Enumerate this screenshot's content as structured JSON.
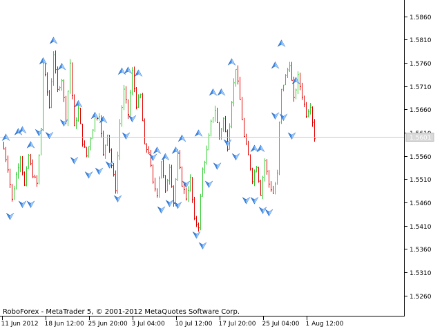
{
  "chart_data": {
    "type": "bar",
    "subtype": "HLC price bars with fractal arrow markers",
    "title": "",
    "xlabel": "",
    "ylabel": "",
    "ylim": [
      1.5215,
      1.5895
    ],
    "grid": false,
    "legend": "none",
    "copyright": "RoboForex - MetaTrader 5, © 2001-2012 MetaQuotes Software Corp.",
    "current_price": 1.5601,
    "current_price_label": "1.5601",
    "y_ticks": [
      {
        "value": 1.586,
        "label": "1.5860"
      },
      {
        "value": 1.581,
        "label": "1.5810"
      },
      {
        "value": 1.576,
        "label": "1.5760"
      },
      {
        "value": 1.571,
        "label": "1.5710"
      },
      {
        "value": 1.566,
        "label": "1.5660"
      },
      {
        "value": 1.561,
        "label": "1.5610"
      },
      {
        "value": 1.556,
        "label": "1.5560"
      },
      {
        "value": 1.551,
        "label": "1.5510"
      },
      {
        "value": 1.546,
        "label": "1.5460"
      },
      {
        "value": 1.541,
        "label": "1.5410"
      },
      {
        "value": 1.536,
        "label": "1.5360"
      },
      {
        "value": 1.531,
        "label": "1.5310"
      },
      {
        "value": 1.526,
        "label": "1.5260"
      }
    ],
    "x_ticks": [
      {
        "bar": 0,
        "label": "11 Jun 2012"
      },
      {
        "bar": 21,
        "label": "18 Jun 12:00"
      },
      {
        "bar": 42,
        "label": "25 Jun 20:00"
      },
      {
        "bar": 63,
        "label": "3 Jul 04:00"
      },
      {
        "bar": 84,
        "label": "10 Jul 12:00"
      },
      {
        "bar": 105,
        "label": "17 Jul 20:00"
      },
      {
        "bar": 126,
        "label": "25 Jul 04:00"
      },
      {
        "bar": 147,
        "label": "1 Aug 12:00"
      }
    ],
    "series": [
      {
        "direction": "up",
        "color": "#32cd32"
      },
      {
        "direction": "down",
        "color": "#e00000"
      }
    ],
    "close_path": [
      [
        0,
        1.5575
      ],
      [
        2,
        1.5535
      ],
      [
        4,
        1.5465
      ],
      [
        6,
        1.552
      ],
      [
        8,
        1.556
      ],
      [
        10,
        1.5495
      ],
      [
        12,
        1.556
      ],
      [
        14,
        1.552
      ],
      [
        16,
        1.55
      ],
      [
        18,
        1.562
      ],
      [
        19,
        1.576
      ],
      [
        20,
        1.573
      ],
      [
        22,
        1.5665
      ],
      [
        24,
        1.578
      ],
      [
        26,
        1.57
      ],
      [
        28,
        1.5725
      ],
      [
        30,
        1.564
      ],
      [
        32,
        1.576
      ],
      [
        34,
        1.562
      ],
      [
        36,
        1.566
      ],
      [
        38,
        1.559
      ],
      [
        40,
        1.556
      ],
      [
        42,
        1.56
      ],
      [
        44,
        1.564
      ],
      [
        46,
        1.565
      ],
      [
        48,
        1.556
      ],
      [
        50,
        1.561
      ],
      [
        52,
        1.554
      ],
      [
        54,
        1.549
      ],
      [
        56,
        1.563
      ],
      [
        58,
        1.57
      ],
      [
        60,
        1.565
      ],
      [
        62,
        1.574
      ],
      [
        64,
        1.567
      ],
      [
        66,
        1.569
      ],
      [
        68,
        1.558
      ],
      [
        70,
        1.557
      ],
      [
        72,
        1.55
      ],
      [
        74,
        1.548
      ],
      [
        76,
        1.555
      ],
      [
        78,
        1.548
      ],
      [
        80,
        1.554
      ],
      [
        82,
        1.546
      ],
      [
        84,
        1.556
      ],
      [
        86,
        1.55
      ],
      [
        88,
        1.547
      ],
      [
        90,
        1.551
      ],
      [
        92,
        1.542
      ],
      [
        94,
        1.541
      ],
      [
        96,
        1.553
      ],
      [
        98,
        1.557
      ],
      [
        100,
        1.563
      ],
      [
        102,
        1.566
      ],
      [
        104,
        1.56
      ],
      [
        106,
        1.564
      ],
      [
        108,
        1.558
      ],
      [
        110,
        1.568
      ],
      [
        112,
        1.575
      ],
      [
        114,
        1.568
      ],
      [
        116,
        1.56
      ],
      [
        118,
        1.556
      ],
      [
        120,
        1.551
      ],
      [
        122,
        1.554
      ],
      [
        124,
        1.548
      ],
      [
        126,
        1.555
      ],
      [
        128,
        1.55
      ],
      [
        130,
        1.548
      ],
      [
        132,
        1.552
      ],
      [
        133,
        1.563
      ],
      [
        134,
        1.57
      ],
      [
        136,
        1.573
      ],
      [
        138,
        1.576
      ],
      [
        140,
        1.568
      ],
      [
        142,
        1.573
      ],
      [
        144,
        1.569
      ],
      [
        146,
        1.565
      ],
      [
        148,
        1.567
      ],
      [
        150,
        1.56
      ]
    ],
    "fractals_up": [
      [
        1,
        1.5598
      ],
      [
        7,
        1.561
      ],
      [
        9,
        1.5614
      ],
      [
        13,
        1.5582
      ],
      [
        19,
        1.5762
      ],
      [
        24,
        1.5806
      ],
      [
        28,
        1.575
      ],
      [
        36,
        1.567
      ],
      [
        44,
        1.5645
      ],
      [
        48,
        1.5636
      ],
      [
        57,
        1.574
      ],
      [
        60,
        1.5742
      ],
      [
        65,
        1.5736
      ],
      [
        74,
        1.557
      ],
      [
        78,
        1.5556
      ],
      [
        83,
        1.557
      ],
      [
        86,
        1.5596
      ],
      [
        94,
        1.5607
      ],
      [
        101,
        1.5695
      ],
      [
        105,
        1.5695
      ],
      [
        110,
        1.576
      ],
      [
        121,
        1.5574
      ],
      [
        124,
        1.5574
      ],
      [
        131,
        1.5753
      ],
      [
        134,
        1.58
      ],
      [
        141,
        1.572
      ]
    ],
    "fractals_down": [
      [
        3,
        1.5432
      ],
      [
        9,
        1.5458
      ],
      [
        13,
        1.5458
      ],
      [
        17,
        1.5612
      ],
      [
        22,
        1.5606
      ],
      [
        29,
        1.5633
      ],
      [
        34,
        1.5552
      ],
      [
        41,
        1.5521
      ],
      [
        46,
        1.5529
      ],
      [
        51,
        1.5543
      ],
      [
        55,
        1.547
      ],
      [
        59,
        1.5605
      ],
      [
        62,
        1.5642
      ],
      [
        72,
        1.5559
      ],
      [
        76,
        1.5446
      ],
      [
        80,
        1.546
      ],
      [
        84,
        1.5456
      ],
      [
        88,
        1.5501
      ],
      [
        93,
        1.5392
      ],
      [
        96,
        1.5369
      ],
      [
        99,
        1.5501
      ],
      [
        103,
        1.554
      ],
      [
        108,
        1.559
      ],
      [
        112,
        1.556
      ],
      [
        117,
        1.5466
      ],
      [
        121,
        1.5466
      ],
      [
        125,
        1.5445
      ],
      [
        128,
        1.544
      ],
      [
        131,
        1.5648
      ],
      [
        135,
        1.5645
      ],
      [
        139,
        1.5605
      ]
    ]
  }
}
